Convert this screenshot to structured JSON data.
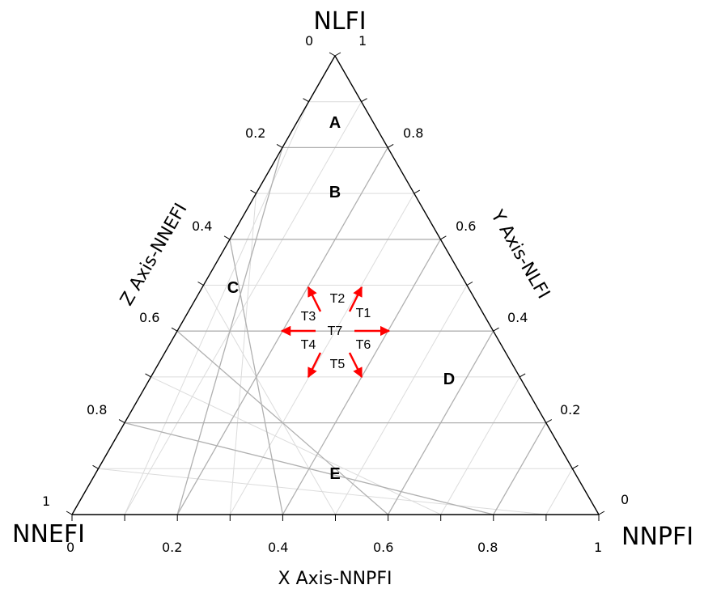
{
  "vertices": {
    "top": "NLFI",
    "left": "NNEFI",
    "right": "NNPFI"
  },
  "axes": {
    "x_title": "X Axis-NNPFI",
    "y_title": "Y Axis-NLFI",
    "z_title": "Z Axis-NNEFI"
  },
  "ticks": {
    "x": [
      "0",
      "0.2",
      "0.4",
      "0.6",
      "0.8",
      "1"
    ],
    "y": [
      "0",
      "0.2",
      "0.4",
      "0.6",
      "0.8",
      "1"
    ],
    "z": [
      "0",
      "0.2",
      "0.4",
      "0.6",
      "0.8",
      "1"
    ]
  },
  "regions": [
    "A",
    "B",
    "C",
    "D",
    "E"
  ],
  "arrows": {
    "center": "T7",
    "labels": [
      "T1",
      "T2",
      "T3",
      "T4",
      "T5",
      "T6"
    ]
  },
  "colors": {
    "outline": "#000000",
    "grid_major": "#b0b0b0",
    "grid_minor": "#dcdcdc",
    "arrow": "#ff0000"
  }
}
